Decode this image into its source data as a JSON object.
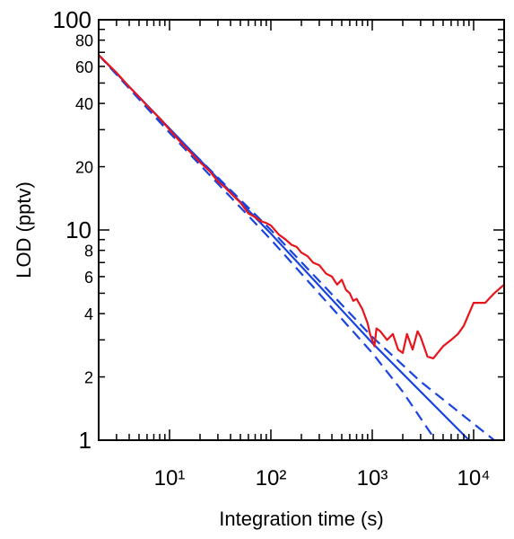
{
  "chart_data": {
    "type": "line",
    "x_label": "Integration time (s)",
    "y_label": "LOD (pptv)",
    "xlog": true,
    "ylog": true,
    "xlim": [
      2,
      20000
    ],
    "ylim": [
      1,
      100
    ],
    "xticks": [
      {
        "value": 10,
        "label": "10¹"
      },
      {
        "value": 100,
        "label": "10²"
      },
      {
        "value": 1000,
        "label": "10³"
      },
      {
        "value": 10000,
        "label": "10⁴"
      }
    ],
    "xminor_ticks": [
      3,
      4,
      5,
      6,
      7,
      8,
      9,
      20,
      30,
      40,
      50,
      60,
      70,
      80,
      90,
      200,
      300,
      400,
      500,
      600,
      700,
      800,
      900,
      2000,
      3000,
      4000,
      5000,
      6000,
      7000,
      8000,
      9000
    ],
    "yticks": [
      1,
      2,
      4,
      6,
      8,
      10,
      20,
      40,
      60,
      80,
      100
    ],
    "yminor_ticks": [
      3,
      5,
      7,
      9,
      30,
      50,
      70,
      90
    ],
    "series": [
      {
        "color": "#1a44e0",
        "style": "dashed",
        "x": [
          2,
          10,
          100,
          1000,
          3000,
          16000
        ],
        "values": [
          68,
          30,
          10,
          3.1,
          1.9,
          1
        ]
      },
      {
        "color": "#1a44e0",
        "style": "dashed",
        "x": [
          2,
          10,
          100,
          1000,
          2000,
          4200
        ],
        "values": [
          68,
          29,
          9,
          2.6,
          1.7,
          1
        ]
      },
      {
        "color": "#1a44e0",
        "style": "solid",
        "x": [
          2,
          100,
          1000,
          9000
        ],
        "values": [
          68,
          9.6,
          2.9,
          1
        ]
      },
      {
        "color": "#e8141c",
        "style": "solid",
        "x": [
          2,
          3,
          4,
          5,
          6,
          8,
          10,
          13,
          16,
          20,
          25,
          30,
          35,
          40,
          50,
          60,
          70,
          80,
          90,
          100,
          120,
          140,
          160,
          180,
          200,
          230,
          260,
          300,
          350,
          400,
          450,
          500,
          550,
          600,
          650,
          700,
          800,
          900,
          950,
          1000,
          1050,
          1100,
          1200,
          1400,
          1600,
          1800,
          2000,
          2200,
          2500,
          2800,
          3000,
          3500,
          4000,
          5000,
          6000,
          7000,
          8000,
          10000,
          13000,
          16000,
          20000
        ],
        "values": [
          68,
          56,
          48,
          43,
          39,
          34,
          30,
          26,
          23.5,
          21,
          19,
          17,
          16,
          15,
          13.5,
          12,
          11.5,
          11,
          10.8,
          10.5,
          9.5,
          9,
          8.5,
          8.3,
          7.8,
          7.5,
          7,
          6.8,
          6.2,
          6,
          5.5,
          5.8,
          5.2,
          5,
          4.6,
          4.7,
          4.2,
          3.6,
          3.2,
          3,
          2.8,
          3.4,
          3.3,
          3,
          3.2,
          2.7,
          2.6,
          3.2,
          2.7,
          3.3,
          3.1,
          2.5,
          2.45,
          2.8,
          3,
          3.2,
          3.5,
          4.5,
          4.5,
          5,
          5.5
        ]
      }
    ]
  }
}
